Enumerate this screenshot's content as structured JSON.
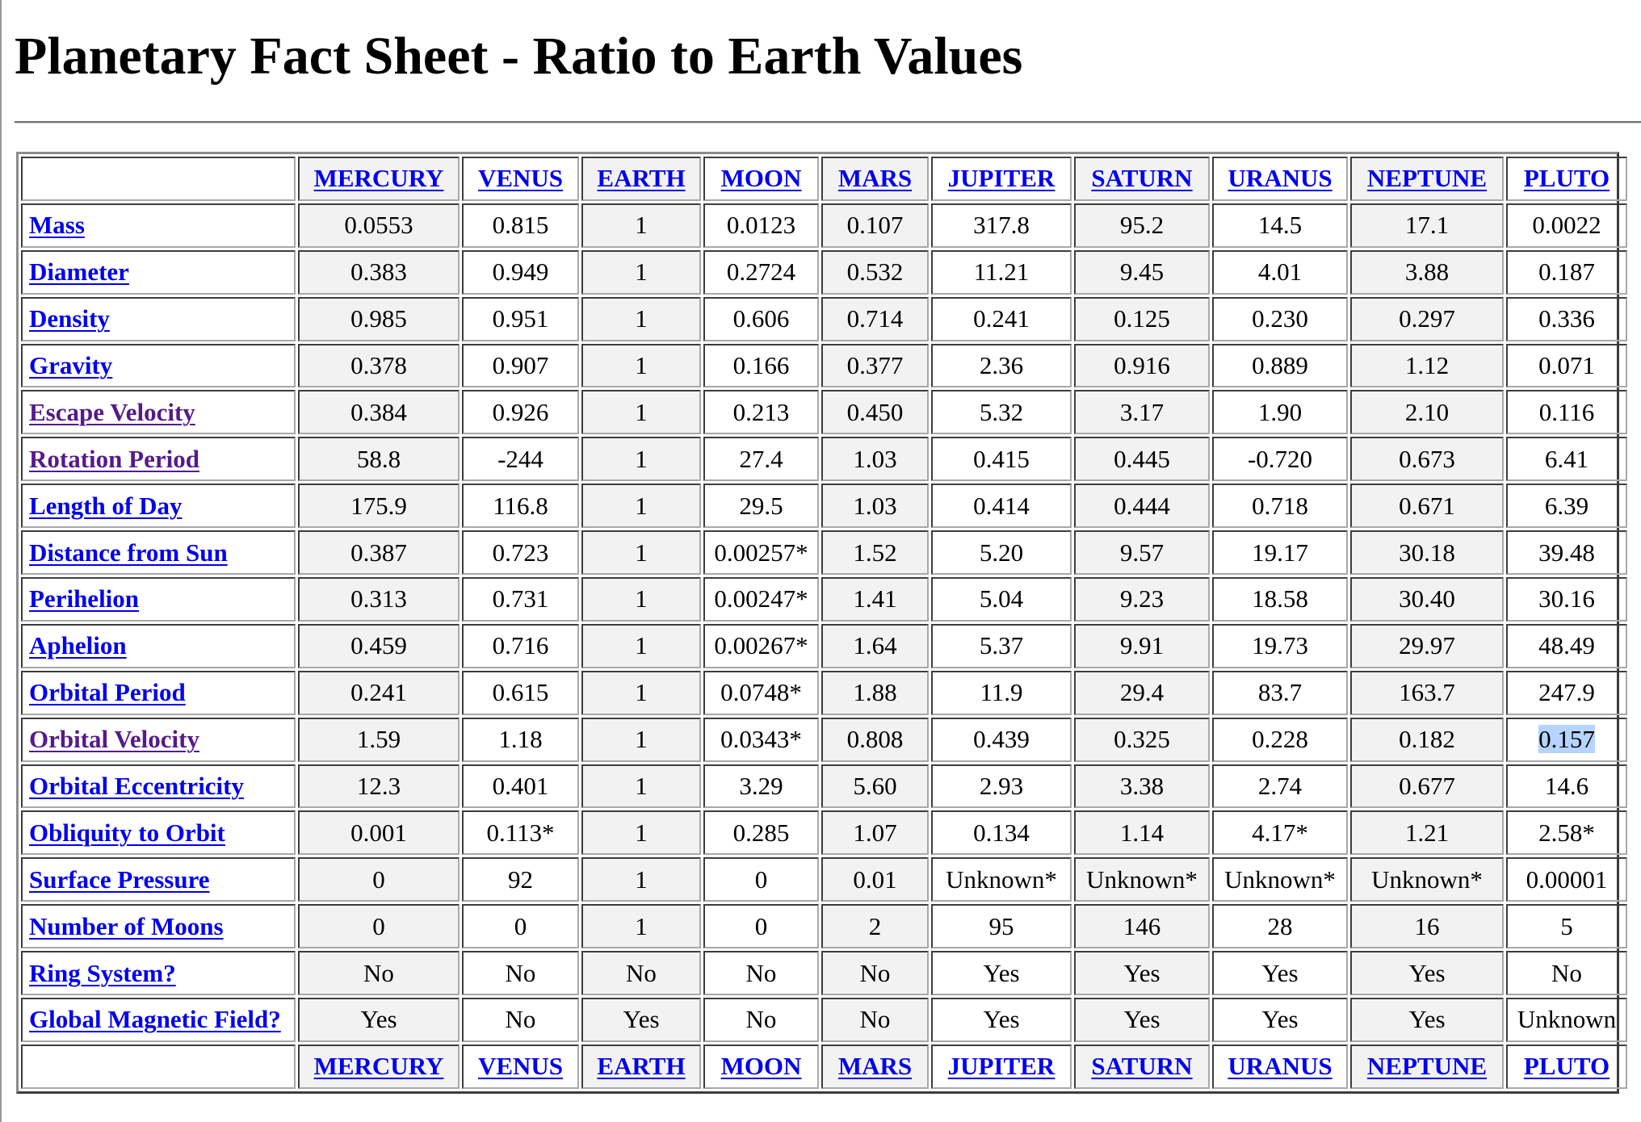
{
  "title": "Planetary Fact Sheet - Ratio to Earth Values",
  "planets": [
    "MERCURY",
    "VENUS",
    "EARTH",
    "MOON",
    "MARS",
    "JUPITER",
    "SATURN",
    "URANUS",
    "NEPTUNE",
    "PLUTO"
  ],
  "rows": [
    {
      "label": "Mass",
      "values": [
        "0.0553",
        "0.815",
        "1",
        "0.0123",
        "0.107",
        "317.8",
        "95.2",
        "14.5",
        "17.1",
        "0.0022"
      ]
    },
    {
      "label": "Diameter",
      "values": [
        "0.383",
        "0.949",
        "1",
        "0.2724",
        "0.532",
        "11.21",
        "9.45",
        "4.01",
        "3.88",
        "0.187"
      ]
    },
    {
      "label": "Density",
      "values": [
        "0.985",
        "0.951",
        "1",
        "0.606",
        "0.714",
        "0.241",
        "0.125",
        "0.230",
        "0.297",
        "0.336"
      ]
    },
    {
      "label": "Gravity",
      "values": [
        "0.378",
        "0.907",
        "1",
        "0.166",
        "0.377",
        "2.36",
        "0.916",
        "0.889",
        "1.12",
        "0.071"
      ]
    },
    {
      "label": "Escape Velocity",
      "values": [
        "0.384",
        "0.926",
        "1",
        "0.213",
        "0.450",
        "5.32",
        "3.17",
        "1.90",
        "2.10",
        "0.116"
      ]
    },
    {
      "label": "Rotation Period",
      "values": [
        "58.8",
        "-244",
        "1",
        "27.4",
        "1.03",
        "0.415",
        "0.445",
        "-0.720",
        "0.673",
        "6.41"
      ]
    },
    {
      "label": "Length of Day",
      "values": [
        "175.9",
        "116.8",
        "1",
        "29.5",
        "1.03",
        "0.414",
        "0.444",
        "0.718",
        "0.671",
        "6.39"
      ]
    },
    {
      "label": "Distance from Sun",
      "values": [
        "0.387",
        "0.723",
        "1",
        "0.00257*",
        "1.52",
        "5.20",
        "9.57",
        "19.17",
        "30.18",
        "39.48"
      ]
    },
    {
      "label": "Perihelion",
      "values": [
        "0.313",
        "0.731",
        "1",
        "0.00247*",
        "1.41",
        "5.04",
        "9.23",
        "18.58",
        "30.40",
        "30.16"
      ]
    },
    {
      "label": "Aphelion",
      "values": [
        "0.459",
        "0.716",
        "1",
        "0.00267*",
        "1.64",
        "5.37",
        "9.91",
        "19.73",
        "29.97",
        "48.49"
      ]
    },
    {
      "label": "Orbital Period",
      "values": [
        "0.241",
        "0.615",
        "1",
        "0.0748*",
        "1.88",
        "11.9",
        "29.4",
        "83.7",
        "163.7",
        "247.9"
      ]
    },
    {
      "label": "Orbital Velocity",
      "values": [
        "1.59",
        "1.18",
        "1",
        "0.0343*",
        "0.808",
        "0.439",
        "0.325",
        "0.228",
        "0.182",
        "0.157"
      ]
    },
    {
      "label": "Orbital Eccentricity",
      "values": [
        "12.3",
        "0.401",
        "1",
        "3.29",
        "5.60",
        "2.93",
        "3.38",
        "2.74",
        "0.677",
        "14.6"
      ]
    },
    {
      "label": "Obliquity to Orbit",
      "values": [
        "0.001",
        "0.113*",
        "1",
        "0.285",
        "1.07",
        "0.134",
        "1.14",
        "4.17*",
        "1.21",
        "2.58*"
      ]
    },
    {
      "label": "Surface Pressure",
      "values": [
        "0",
        "92",
        "1",
        "0",
        "0.01",
        "Unknown*",
        "Unknown*",
        "Unknown*",
        "Unknown*",
        "0.00001"
      ]
    },
    {
      "label": "Number of Moons",
      "values": [
        "0",
        "0",
        "1",
        "0",
        "2",
        "95",
        "146",
        "28",
        "16",
        "5"
      ]
    },
    {
      "label": "Ring System?",
      "values": [
        "No",
        "No",
        "No",
        "No",
        "No",
        "Yes",
        "Yes",
        "Yes",
        "Yes",
        "No"
      ]
    },
    {
      "label": "Global Magnetic Field?",
      "values": [
        "Yes",
        "No",
        "Yes",
        "No",
        "No",
        "Yes",
        "Yes",
        "Yes",
        "Yes",
        "Unknown"
      ]
    }
  ],
  "visited_rows": [
    "Escape Velocity",
    "Rotation Period",
    "Orbital Velocity"
  ],
  "selected_cell": {
    "row": "Orbital Velocity",
    "planet": "PLUTO"
  },
  "colors": {
    "link": "#0000ee",
    "visited_link": "#551a8b",
    "selection": "#b5d5ff",
    "shaded_cell": "#f2f2f2"
  }
}
